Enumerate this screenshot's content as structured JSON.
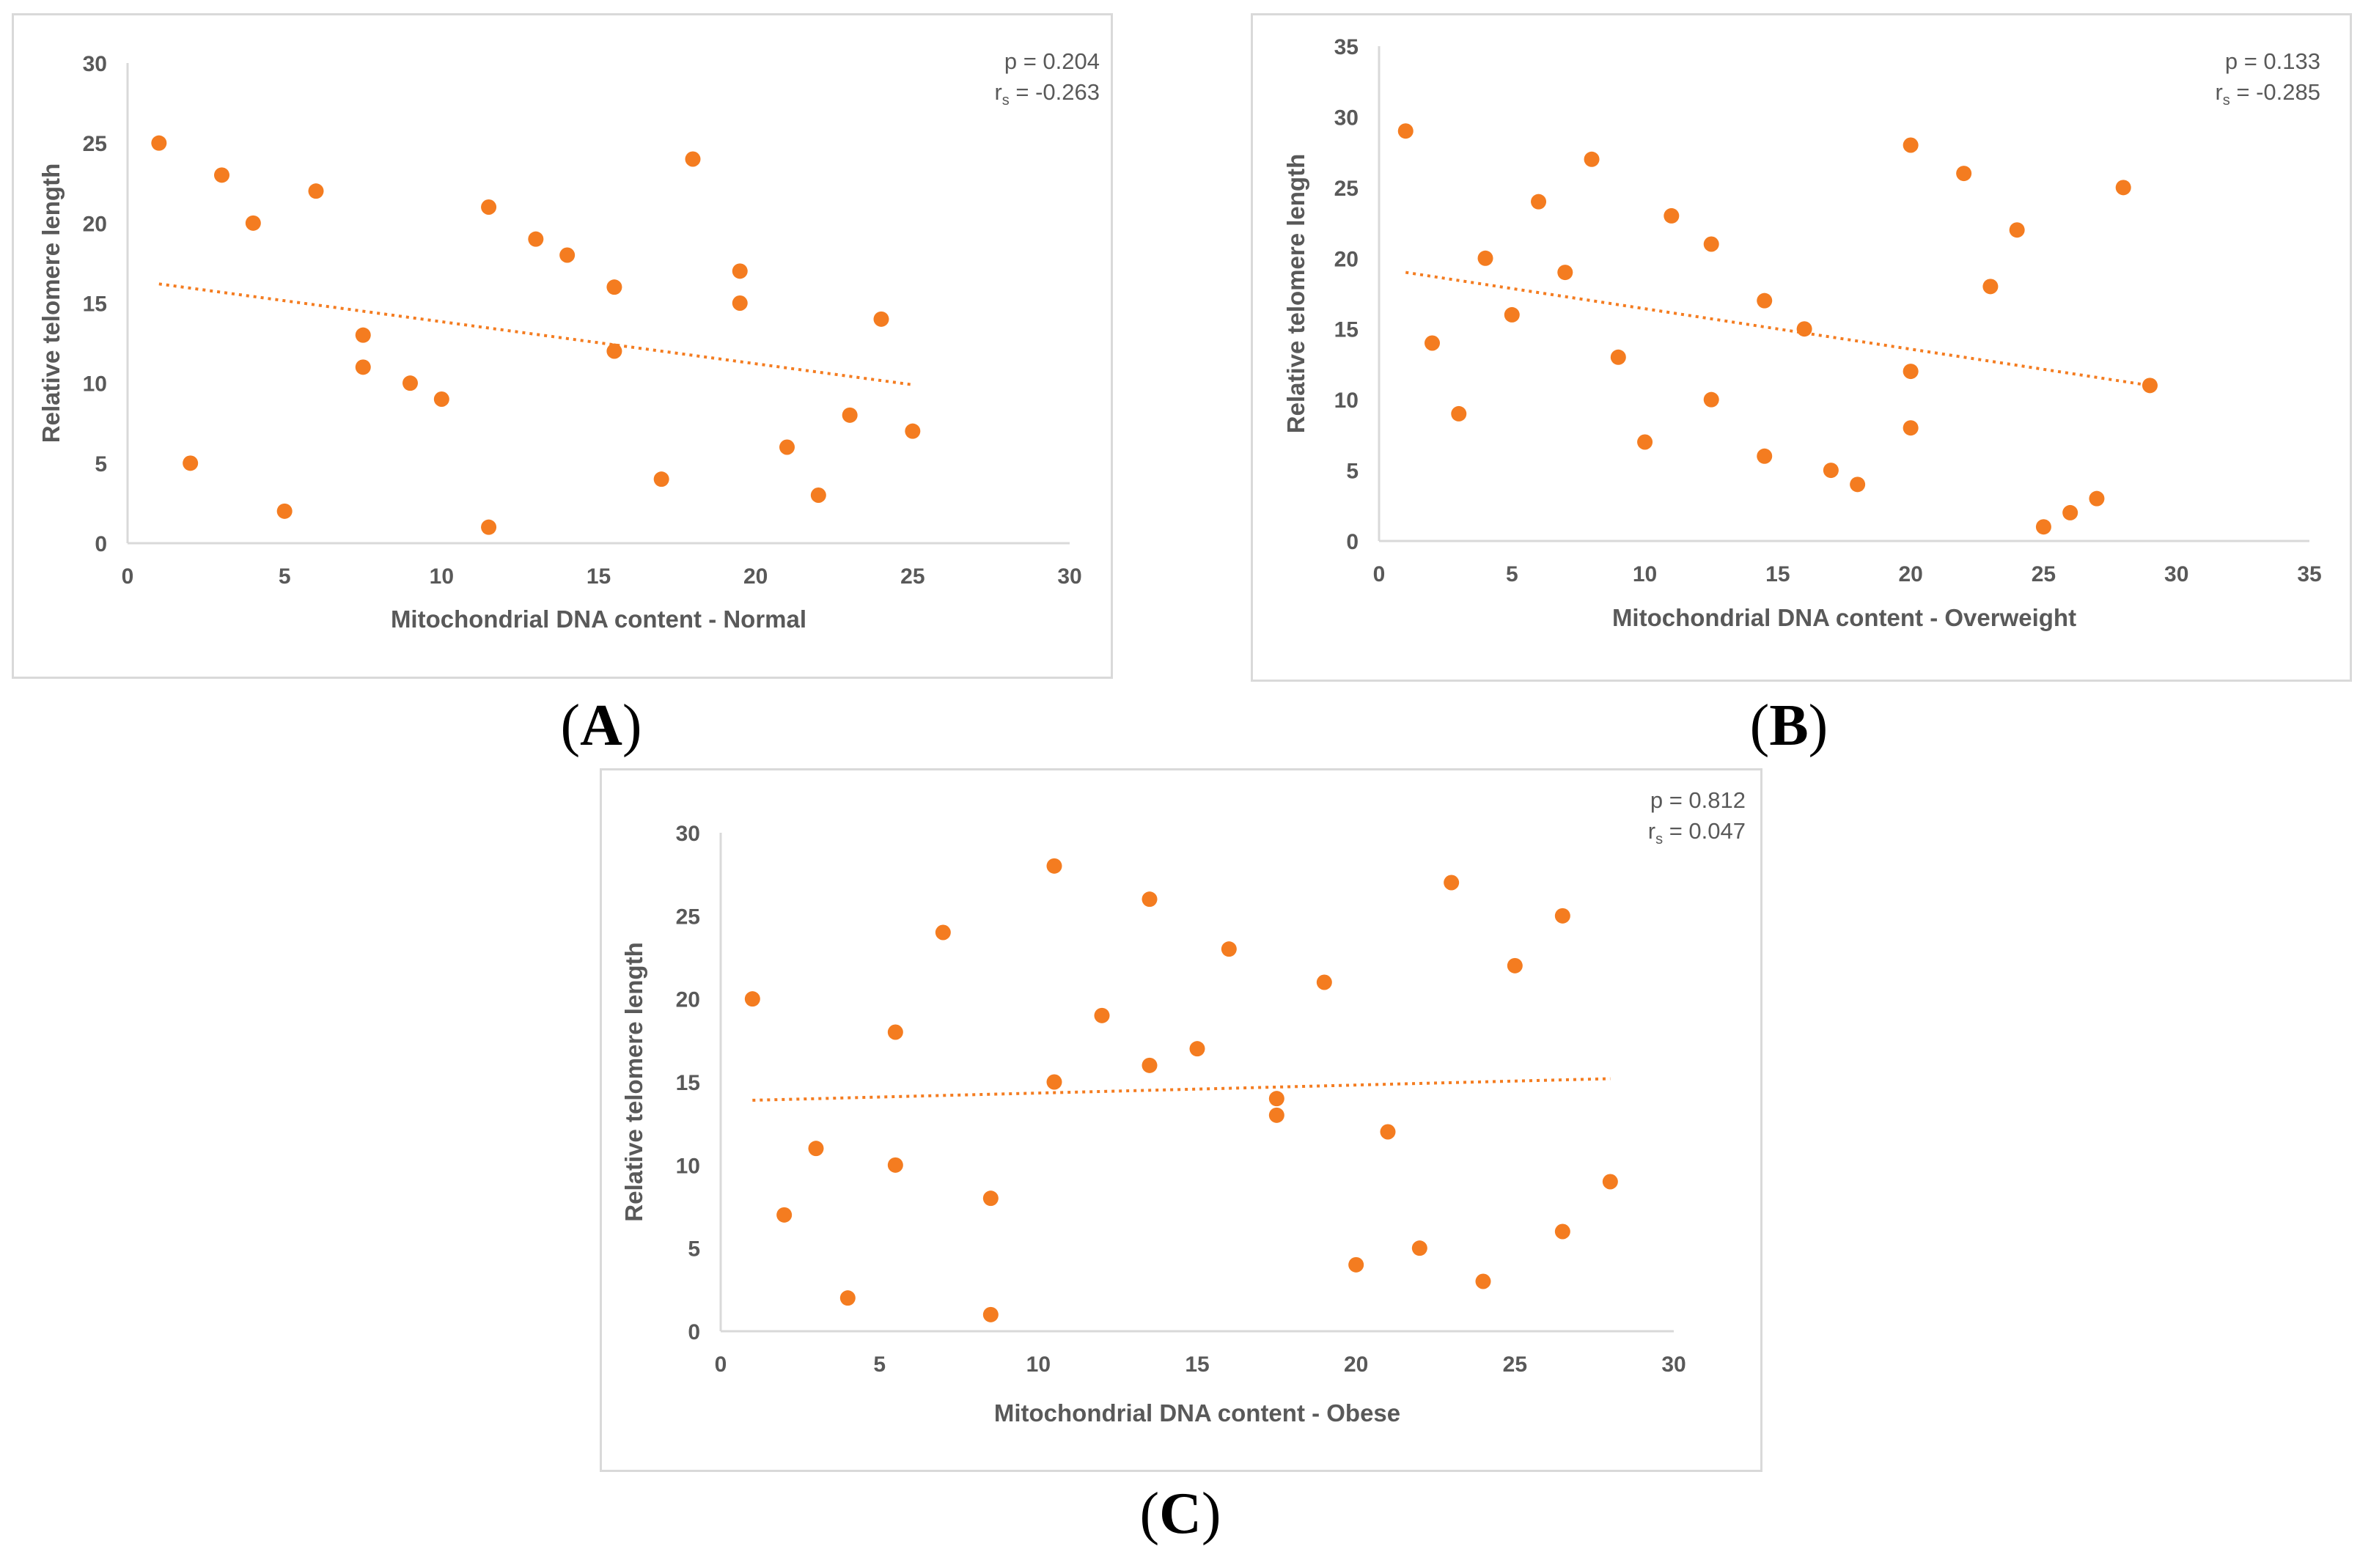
{
  "colors": {
    "point": "#f47c20",
    "trend": "#f47c20",
    "axis": "#d9d9d9",
    "tick_text": "#595959",
    "label_text": "#595959"
  },
  "chart_data": [
    {
      "id": "A",
      "type": "scatter",
      "caption_letter": "A",
      "xlabel": "Mitochondrial  DNA content - Normal",
      "ylabel": "Relative telomere length",
      "xlim": [
        0,
        30
      ],
      "ylim": [
        0,
        30
      ],
      "xticks": [
        0,
        5,
        10,
        15,
        20,
        25,
        30
      ],
      "yticks": [
        0,
        5,
        10,
        15,
        20,
        25,
        30
      ],
      "stat_p": "p = 0.204",
      "stat_r_prefix": "r",
      "stat_r_sub": "s",
      "stat_r_value": " = -0.263",
      "trendline": {
        "x": [
          1,
          25
        ],
        "y": [
          16.2,
          9.9
        ]
      },
      "points": {
        "x": [
          1,
          2,
          3,
          4,
          5,
          6,
          7.5,
          7.5,
          9,
          10,
          11.5,
          11.5,
          13,
          14,
          15.5,
          15.5,
          17,
          18,
          19.5,
          19.5,
          21,
          22,
          23,
          24,
          25
        ],
        "y": [
          25,
          5,
          23,
          20,
          2,
          22,
          13,
          11,
          10,
          9,
          21,
          1,
          19,
          18,
          16,
          12,
          4,
          24,
          17,
          15,
          6,
          3,
          8,
          14,
          7
        ]
      }
    },
    {
      "id": "B",
      "type": "scatter",
      "caption_letter": "B",
      "xlabel": "Mitochondrial  DNA content - Overweight",
      "ylabel": "Relative telomere length",
      "xlim": [
        0,
        35
      ],
      "ylim": [
        0,
        35
      ],
      "xticks": [
        0,
        5,
        10,
        15,
        20,
        25,
        30,
        35
      ],
      "yticks": [
        0,
        5,
        10,
        15,
        20,
        25,
        30,
        35
      ],
      "stat_p": "p  = 0.133",
      "stat_r_prefix": "r",
      "stat_r_sub": "s",
      "stat_r_value": " = -0.285",
      "trendline": {
        "x": [
          1,
          29
        ],
        "y": [
          19,
          11
        ]
      },
      "points": {
        "x": [
          1,
          2,
          3,
          4,
          5,
          6,
          7,
          8,
          9,
          10,
          11,
          12.5,
          12.5,
          14.5,
          14.5,
          16,
          17,
          18,
          20,
          20,
          20,
          22,
          23,
          24,
          25,
          26,
          27,
          28,
          29
        ],
        "y": [
          29,
          14,
          9,
          20,
          16,
          24,
          19,
          27,
          13,
          7,
          23,
          21,
          10,
          17,
          6,
          15,
          5,
          4,
          28,
          12,
          8,
          26,
          18,
          22,
          1,
          2,
          3,
          25,
          11
        ]
      }
    },
    {
      "id": "C",
      "type": "scatter",
      "caption_letter": "C",
      "xlabel": "Mitochondrial  DNA content - Obese",
      "ylabel": "Relative telomere length",
      "xlim": [
        0,
        30
      ],
      "ylim": [
        0,
        30
      ],
      "xticks": [
        0,
        5,
        10,
        15,
        20,
        25,
        30
      ],
      "yticks": [
        0,
        5,
        10,
        15,
        20,
        25,
        30
      ],
      "stat_p": "p  = 0.812",
      "stat_r_prefix": "r",
      "stat_r_sub": "s",
      "stat_r_value": " = 0.047",
      "trendline": {
        "x": [
          1,
          28
        ],
        "y": [
          13.9,
          15.2
        ]
      },
      "points": {
        "x": [
          1,
          2,
          3,
          4,
          5.5,
          5.5,
          7,
          8.5,
          8.5,
          10.5,
          10.5,
          12,
          13.5,
          13.5,
          15,
          16,
          17.5,
          17.5,
          19,
          20,
          21,
          22,
          23,
          24,
          25,
          26.5,
          26.5,
          28
        ],
        "y": [
          20,
          7,
          11,
          2,
          18,
          10,
          24,
          8,
          1,
          28,
          15,
          19,
          26,
          16,
          17,
          23,
          14,
          13,
          21,
          4,
          12,
          5,
          27,
          3,
          22,
          25,
          6,
          9
        ]
      }
    }
  ]
}
